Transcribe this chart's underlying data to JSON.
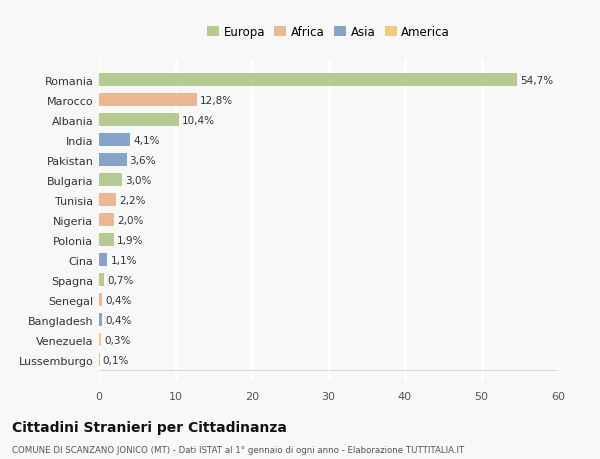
{
  "categories": [
    "Romania",
    "Marocco",
    "Albania",
    "India",
    "Pakistan",
    "Bulgaria",
    "Tunisia",
    "Nigeria",
    "Polonia",
    "Cina",
    "Spagna",
    "Senegal",
    "Bangladesh",
    "Venezuela",
    "Lussemburgo"
  ],
  "values": [
    54.7,
    12.8,
    10.4,
    4.1,
    3.6,
    3.0,
    2.2,
    2.0,
    1.9,
    1.1,
    0.7,
    0.4,
    0.4,
    0.3,
    0.1
  ],
  "labels": [
    "54,7%",
    "12,8%",
    "10,4%",
    "4,1%",
    "3,6%",
    "3,0%",
    "2,2%",
    "2,0%",
    "1,9%",
    "1,1%",
    "0,7%",
    "0,4%",
    "0,4%",
    "0,3%",
    "0,1%"
  ],
  "colors": [
    "#a8c07a",
    "#e8a97a",
    "#a8c07a",
    "#7090c0",
    "#7090c0",
    "#a8c07a",
    "#e8a97a",
    "#e8a97a",
    "#a8c07a",
    "#7090c0",
    "#a8c07a",
    "#e8a97a",
    "#7090c0",
    "#f0c060",
    "#a8c07a"
  ],
  "legend_labels": [
    "Europa",
    "Africa",
    "Asia",
    "America"
  ],
  "legend_colors": [
    "#a8c07a",
    "#e8a97a",
    "#7090c0",
    "#f0c060"
  ],
  "title": "Cittadini Stranieri per Cittadinanza",
  "subtitle": "COMUNE DI SCANZANO JONICO (MT) - Dati ISTAT al 1° gennaio di ogni anno - Elaborazione TUTTITALIA.IT",
  "xlim": [
    0,
    60
  ],
  "xticks": [
    0,
    10,
    20,
    30,
    40,
    50,
    60
  ],
  "bg_color": "#f8f8f8",
  "grid_color": "#ffffff",
  "bar_alpha": 0.82
}
